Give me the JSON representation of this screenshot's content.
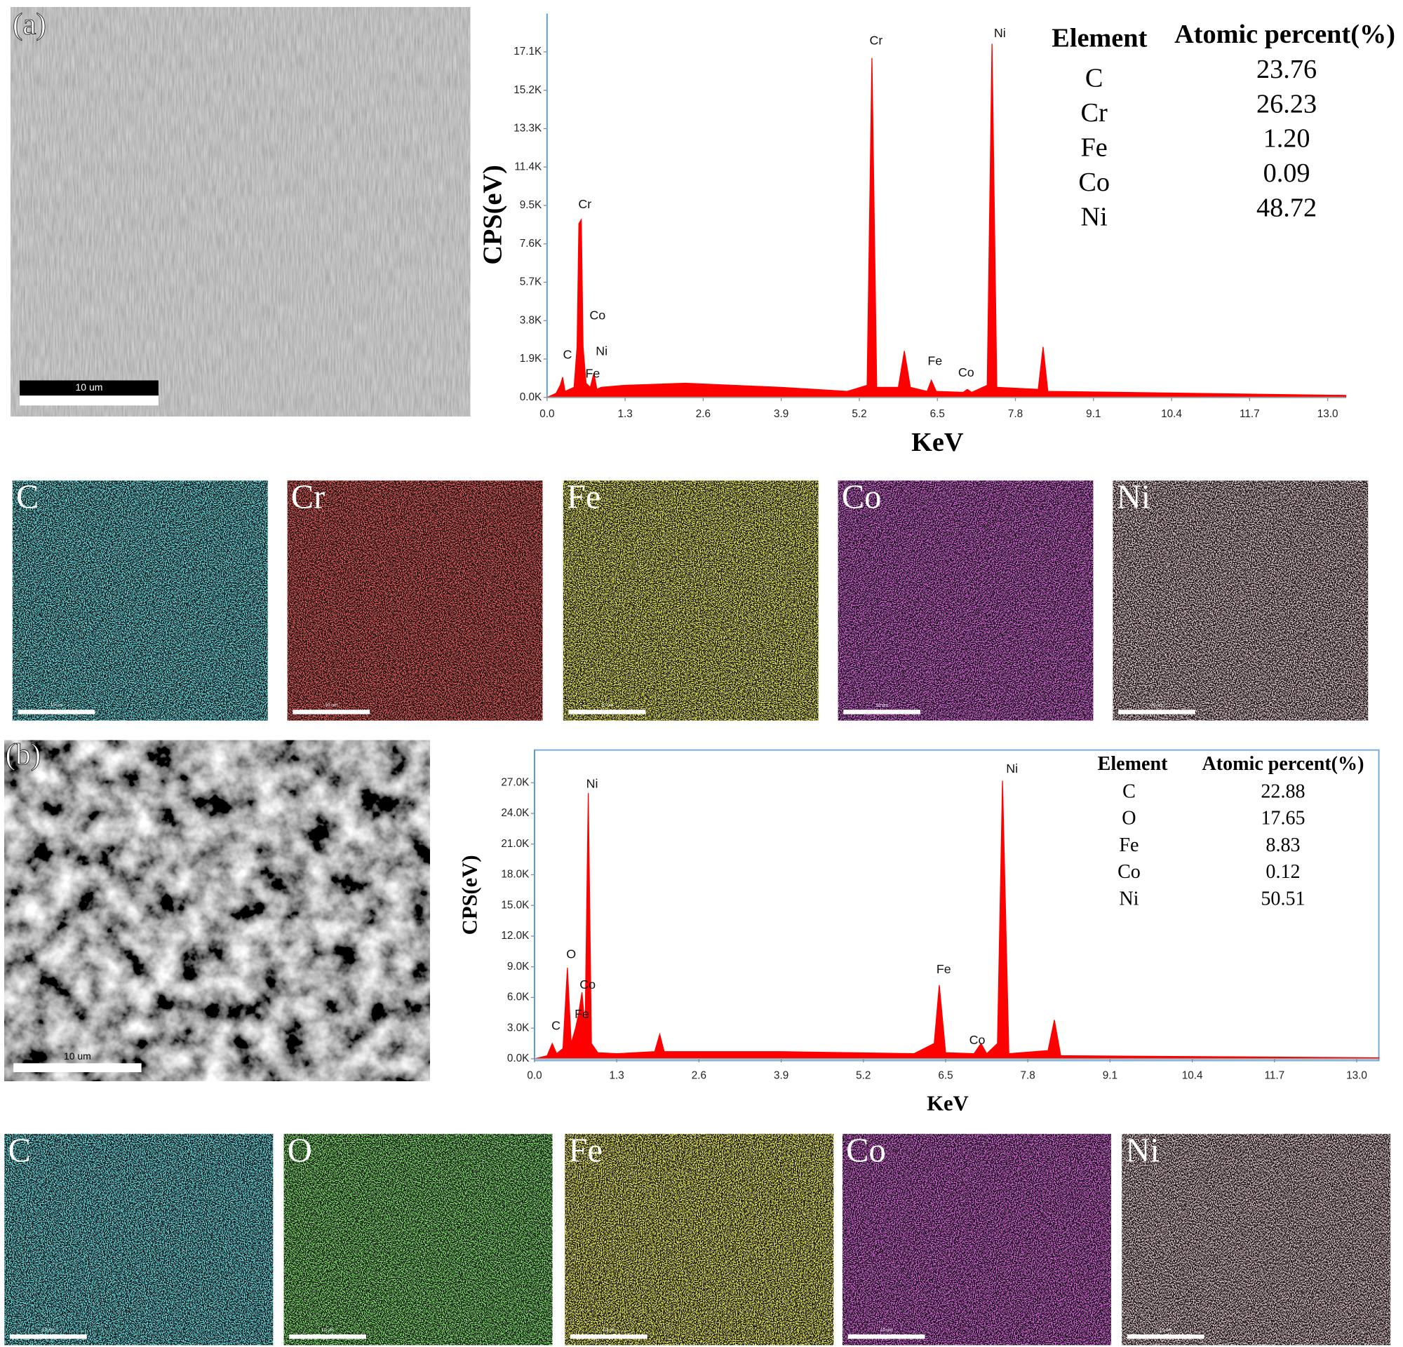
{
  "chart_data": [
    {
      "type": "area",
      "ylabel": "CPS(eV)",
      "xlabel": "KeV",
      "color": "#ff0000",
      "frame": "left",
      "x": [
        0,
        0.15,
        0.22,
        0.26,
        0.3,
        0.45,
        0.5,
        0.53,
        0.57,
        0.6,
        0.65,
        0.72,
        0.78,
        0.83,
        0.9,
        1.3,
        2.3,
        3.9,
        5.0,
        5.33,
        5.41,
        5.49,
        5.85,
        5.95,
        6.05,
        6.33,
        6.4,
        6.48,
        6.93,
        7.0,
        7.07,
        7.33,
        7.41,
        7.49,
        8.18,
        8.26,
        8.34,
        13.3
      ],
      "values": [
        0,
        200,
        600,
        1000,
        300,
        500,
        2500,
        8600,
        8800,
        2500,
        700,
        500,
        1200,
        400,
        500,
        600,
        700,
        500,
        300,
        600,
        16800,
        500,
        500,
        2300,
        500,
        300,
        850,
        300,
        250,
        400,
        250,
        600,
        17500,
        500,
        400,
        2500,
        300,
        100
      ],
      "xlim": [
        0,
        13.3
      ],
      "xticks": [
        {
          "value": 0,
          "label": "0.0"
        },
        1.3,
        2.6,
        3.9,
        5.2,
        6.5,
        7.8,
        9.1,
        10.4,
        11.7,
        {
          "value": 13,
          "label": "13.0"
        }
      ],
      "ylim": [
        0,
        19000
      ],
      "yticks": [
        {
          "value": 0,
          "label": "0.0K"
        },
        {
          "value": 1900,
          "label": "1.9K"
        },
        {
          "value": 3800,
          "label": "3.8K"
        },
        {
          "value": 5700,
          "label": "5.7K"
        },
        {
          "value": 7600,
          "label": "7.6K"
        },
        {
          "value": 9500,
          "label": "9.5K"
        },
        {
          "value": 11400,
          "label": "11.4K"
        },
        {
          "value": 13300,
          "label": "13.3K"
        },
        {
          "value": 15200,
          "label": "15.2K"
        },
        {
          "value": 17100,
          "label": "17.1K"
        }
      ],
      "annotations": [
        {
          "text": "C",
          "x": 0.34,
          "y": 2080
        },
        {
          "text": "Cr",
          "x": 0.63,
          "y": 9520
        },
        {
          "text": "Co",
          "x": 0.84,
          "y": 4030
        },
        {
          "text": "Ni",
          "x": 0.91,
          "y": 2260
        },
        {
          "text": "Fe",
          "x": 0.76,
          "y": 1150
        },
        {
          "text": "Cr",
          "x": 5.48,
          "y": 17630
        },
        {
          "text": "Ni",
          "x": 7.54,
          "y": 17990
        },
        {
          "text": "Fe",
          "x": 6.46,
          "y": 1770
        },
        {
          "text": "Co",
          "x": 6.98,
          "y": 1200
        }
      ],
      "table": {
        "header": [
          "Element",
          "Atomic percent(%)"
        ],
        "rows": [
          [
            "C",
            "23.76"
          ],
          [
            "Cr",
            "26.23"
          ],
          [
            "Fe",
            "1.20"
          ],
          [
            "Co",
            "0.09"
          ],
          [
            "Ni",
            "48.72"
          ]
        ]
      }
    },
    {
      "type": "area",
      "ylabel": "CPS(eV)",
      "xlabel": "KeV",
      "color": "#ff0000",
      "frame": "box",
      "x": [
        0,
        0.2,
        0.28,
        0.35,
        0.45,
        0.52,
        0.58,
        0.65,
        0.7,
        0.75,
        0.8,
        0.85,
        0.9,
        1.0,
        1.3,
        1.9,
        1.98,
        2.05,
        3.9,
        6.0,
        6.32,
        6.4,
        6.5,
        6.95,
        7.06,
        7.15,
        7.32,
        7.4,
        7.5,
        8.12,
        8.22,
        8.32,
        13.35
      ],
      "values": [
        0,
        300,
        1500,
        500,
        1000,
        8900,
        1500,
        3000,
        4500,
        6500,
        3000,
        26000,
        1500,
        600,
        500,
        700,
        2400,
        700,
        700,
        500,
        1500,
        7200,
        600,
        500,
        1500,
        500,
        1500,
        27200,
        500,
        800,
        3800,
        300,
        100
      ],
      "xlim": [
        0,
        13.35
      ],
      "xticks": [
        {
          "value": 0,
          "label": "0.0"
        },
        1.3,
        2.6,
        3.9,
        5.2,
        6.5,
        7.8,
        9.1,
        10.4,
        11.7,
        {
          "value": 13,
          "label": "13.0"
        }
      ],
      "ylim": [
        0,
        30200
      ],
      "yticks": [
        {
          "value": 0,
          "label": "0.0K"
        },
        {
          "value": 3000,
          "label": "3.0K"
        },
        {
          "value": 6000,
          "label": "6.0K"
        },
        {
          "value": 9000,
          "label": "9.0K"
        },
        {
          "value": 12000,
          "label": "12.0K"
        },
        {
          "value": 15000,
          "label": "15.0K"
        },
        {
          "value": 18000,
          "label": "18.0K"
        },
        {
          "value": 21000,
          "label": "21.0K"
        },
        {
          "value": 24000,
          "label": "24.0K"
        },
        {
          "value": 27000,
          "label": "27.0K"
        }
      ],
      "annotations": [
        {
          "text": "C",
          "x": 0.34,
          "y": 3160
        },
        {
          "text": "O",
          "x": 0.58,
          "y": 10170
        },
        {
          "text": "Ni",
          "x": 0.91,
          "y": 26820
        },
        {
          "text": "Co",
          "x": 0.84,
          "y": 7190
        },
        {
          "text": "Fe",
          "x": 0.75,
          "y": 4300
        },
        {
          "text": "Fe",
          "x": 6.47,
          "y": 8680
        },
        {
          "text": "Co",
          "x": 7.0,
          "y": 1750
        },
        {
          "text": "Ni",
          "x": 7.55,
          "y": 28310
        }
      ],
      "table": {
        "header": [
          "Element",
          "Atomic percent(%)"
        ],
        "rows": [
          [
            "C",
            "22.88"
          ],
          [
            "O",
            "17.65"
          ],
          [
            "Fe",
            "8.83"
          ],
          [
            "Co",
            "0.12"
          ],
          [
            "Ni",
            "50.51"
          ]
        ]
      }
    }
  ],
  "panels": [
    {
      "label": "(a)",
      "scale_bar": "10 um",
      "maps": [
        {
          "element": "C",
          "color": "#27c9d6",
          "scale_bar": "10 um"
        },
        {
          "element": "Cr",
          "color": "#e0201e",
          "scale_bar": "10 um"
        },
        {
          "element": "Fe",
          "color": "#e8e21e",
          "scale_bar": "10 um"
        },
        {
          "element": "Co",
          "color": "#c026c8",
          "scale_bar": "10 um"
        },
        {
          "element": "Ni",
          "color": "#d8a0a8",
          "scale_bar": "10 um"
        }
      ]
    },
    {
      "label": "(b)",
      "scale_bar": "10 um",
      "maps": [
        {
          "element": "C",
          "color": "#27c9d6",
          "scale_bar": "10 um"
        },
        {
          "element": "O",
          "color": "#3ed62a",
          "scale_bar": "10 um"
        },
        {
          "element": "Fe",
          "color": "#e8e21e",
          "scale_bar": "10 um"
        },
        {
          "element": "Co",
          "color": "#c026c8",
          "scale_bar": "10 um"
        },
        {
          "element": "Ni",
          "color": "#d8a0a8",
          "scale_bar": "10 um"
        }
      ]
    }
  ]
}
